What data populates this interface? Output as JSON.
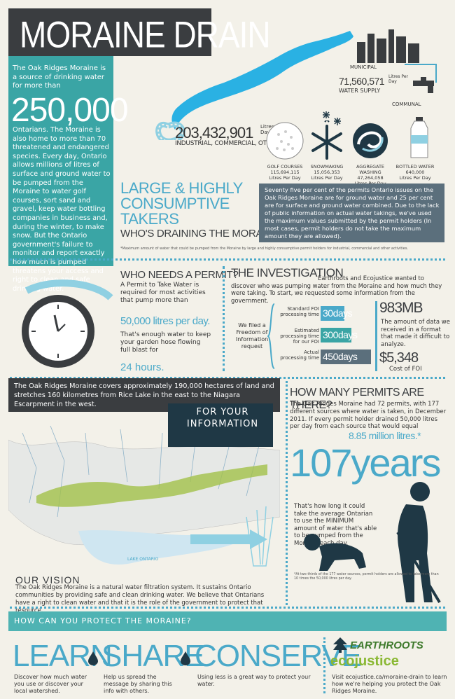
{
  "header": {
    "title": "MORAINE DRAIN"
  },
  "intro": {
    "text_1": "The Oak Ridges Moraine is a source of drinking water for more than",
    "big_number": "250,000",
    "text_2": "Ontarians. The Moraine is also home to more than 70 threatened and endangered species. Every day, Ontario allows millions of litres of surface and ground water to be pumped from the Moraine to water golf courses, sort sand and gravel, keep water bottling companies in business and, during the winter, to make snow. But the Ontario government's failure to monitor and report exactly how much is pumped threatens your access and right to clean and safe drinking water."
  },
  "water_uses": {
    "industrial_number": "203,432,901",
    "industrial_unit": "Litres Per Day",
    "industrial_label": "INDUSTRIAL, COMMERCIAL, OTHER",
    "municipal_label": "MUNICIPAL",
    "water_supply_number": "71,560,571",
    "water_supply_unit": "Litres Per Day",
    "water_supply_label": "WATER SUPPLY",
    "communal_label": "COMMUNAL",
    "items": [
      {
        "name": "GOLF COURSES",
        "value": "115,694,115",
        "unit": "Litres Per Day",
        "icon": "golf-ball-icon"
      },
      {
        "name": "SNOWMAKING",
        "value": "15,056,353",
        "unit": "Litres Per Day",
        "icon": "snowflake-icon"
      },
      {
        "name": "AGGREGATE WASHING",
        "value": "47,264,058",
        "unit": "Litres Per Day",
        "icon": "water-swirl-icon"
      },
      {
        "name": "BOTTLED WATER",
        "value": "640,000",
        "unit": "Litres Per Day",
        "icon": "water-bottle-icon"
      }
    ]
  },
  "takers": {
    "title": "LARGE & HIGHLY CONSUMPTIVE TAKERS",
    "subtitle": "WHO'S DRAINING THE MORAINE?",
    "box_text": "Seventy five per cent of the permits Ontario issues on the Oak Ridges Moraine are for ground water and 25 per cent are for surface and ground water combined. Due to the lack of public information on actual water takings, we've used the maximum values submitted by the permit holders (In most cases, permit holders do not take the maximum amount they are allowed).",
    "footnote": "*Maximum amount of water that could be pumped from the Moraine by large and highly consumptive permit holders for industrial, commercial and other activities."
  },
  "permit": {
    "title": "WHO NEEDS A PERMIT?",
    "text_1": "A Permit to Take Water is required for most activities that pump more than",
    "big": "50,000 litres per day.",
    "text_2": "That's enough water to keep your garden hose flowing full blast for",
    "hours": "24 hours."
  },
  "investigation": {
    "title": "THE INVESTIGATION",
    "text": "Earthroots and Ecojustice wanted to discover who was pumping water from the Moraine and how much they were taking. To start, we requested some information from the government.",
    "foi_label": "We filed a Freedom of Information request",
    "rows": [
      {
        "label": "Standard FOI processing time",
        "value": "30days",
        "color": "#4aa9c9",
        "fraction": 0.2
      },
      {
        "label": "Estimated processing time for our FOI",
        "value": "300days",
        "color": "#3aa5a5",
        "fraction": 0.62
      },
      {
        "label": "Actual processing time",
        "value": "450days",
        "color": "#5b6f7c",
        "fraction": 1.0
      }
    ],
    "data_amount": "983MB",
    "data_text": "The amount of data we received in a format that made it difficult to analyze.",
    "cost": "$5,348",
    "cost_label": "Cost of FOI"
  },
  "map": {
    "text": "The Oak Ridges Moraine covers approximately 190,000 hectares of land and stretches 160 kilometres from Rice Lake in the east to the Niagara Escarpment in the west.",
    "info_box": "FOR YOUR INFORMATION",
    "lake_label": "LAKE ONTARIO"
  },
  "vision": {
    "title": "OUR VISION",
    "text": "The Oak Ridges Moraine is a natural water filtration system. It sustains Ontario communities by providing safe and clean drinking water. We believe that Ontarians have a right to clean water and that it is the role of the government to protect that resource."
  },
  "permits_count": {
    "title": "HOW MANY PERMITS ARE THERE?",
    "text": "The Oak Ridges Moraine had 72 permits, with 177 different sources where water is taken, in December 2011. If every permit holder drained 50,000 litres per day from each source that would equal",
    "big": "8.85 million litres.*",
    "years": "107years",
    "years_text": "That's how long it could take the average Ontarian to use the MINIMUM amount of water that's able to be pumped from the Moraine each day.",
    "footnote": "*At two-thirds of the 177 water sources, permit holders are allowed to take more than 10 times the 50,000 litres per day."
  },
  "protect": {
    "banner": "HOW CAN YOU PROTECT THE MORAINE?",
    "learn": "LEARN",
    "share": "SHARE",
    "conserve": "CONSERVE",
    "learn_desc": "Discover how much water you use or discover your local watershed.",
    "share_desc": "Help us spread the message by sharing this info with others.",
    "conserve_desc": "Using less is a great way to protect your water.",
    "earthroots": "EARTHROOTS",
    "ecojustice": "ecojustice",
    "visit": "Visit ecojustice.ca/moraine-drain to learn how we're helping you protect the Oak Ridges Moraine."
  }
}
